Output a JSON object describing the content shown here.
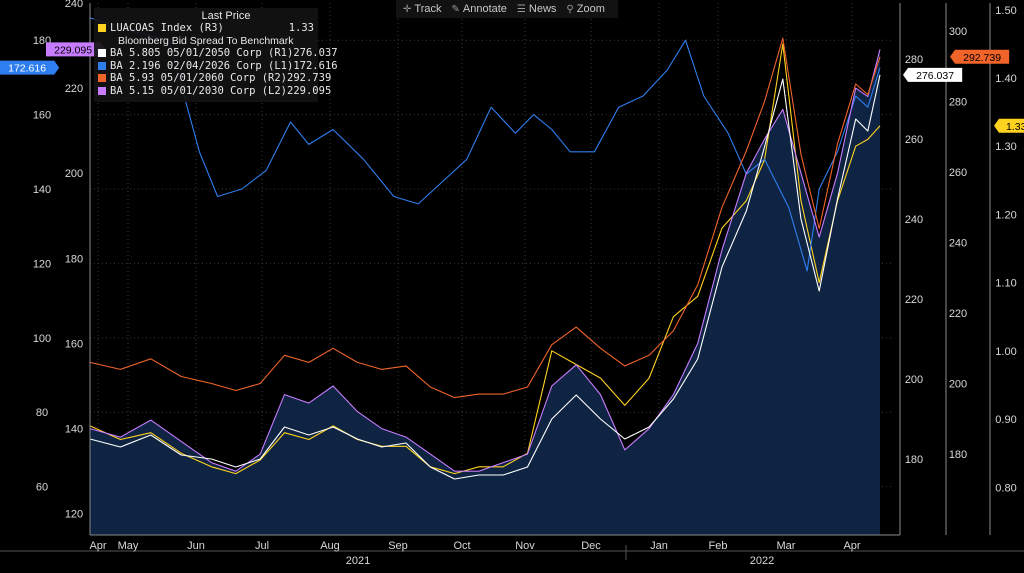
{
  "toolbar": {
    "track": "Track",
    "annotate": "Annotate",
    "news": "News",
    "zoom": "Zoom"
  },
  "legend": {
    "header": "Last Price",
    "entries": [
      {
        "name": "LUACOAS Index  (R3)",
        "value": "1.33",
        "color": "#ffd21f"
      },
      {
        "name": "Bloomberg Bid Spread To Benchmark",
        "value": "",
        "color": ""
      },
      {
        "name": "BA 5.805 05/01/2050 Corp  (R1)",
        "value": "276.037",
        "color": "#ffffff"
      },
      {
        "name": "BA 2.196 02/04/2026 Corp  (L1)",
        "value": "172.616",
        "color": "#2f7ef0"
      },
      {
        "name": "BA 5.93 05/01/2060 Corp  (R2)",
        "value": "292.739",
        "color": "#f0642a"
      },
      {
        "name": "BA 5.15 05/01/2030 Corp  (L2)",
        "value": "229.095",
        "color": "#c77cff"
      }
    ]
  },
  "colors": {
    "luacoas": "#ffd21f",
    "ba2050": "#ffffff",
    "ba2026": "#2f7ef0",
    "ba2060": "#f0642a",
    "ba2030": "#c77cff",
    "area_fill": "#0f2442"
  },
  "chart_data": {
    "type": "line",
    "x_month_labels": [
      "Apr",
      "May",
      "Jun",
      "Jul",
      "Aug",
      "Sep",
      "Oct",
      "Nov",
      "Dec",
      "Jan",
      "Feb",
      "Mar",
      "Apr"
    ],
    "x_year_labels": [
      "2021",
      "2022"
    ],
    "axes": {
      "L1": {
        "ticks": [
          60,
          80,
          100,
          120,
          140,
          160,
          180
        ],
        "range": [
          47,
          190
        ]
      },
      "L2": {
        "ticks": [
          120,
          140,
          160,
          180,
          200,
          220,
          240
        ],
        "range": [
          115,
          240
        ]
      },
      "R1": {
        "ticks": [
          180,
          200,
          220,
          240,
          260,
          280
        ],
        "range": [
          161,
          294
        ]
      },
      "R2": {
        "ticks": [
          180,
          200,
          220,
          240,
          260,
          280,
          300
        ],
        "range": [
          157,
          308
        ]
      },
      "R3": {
        "ticks": [
          0.8,
          0.9,
          1.0,
          1.1,
          1.2,
          1.3,
          1.4,
          1.5
        ],
        "tick_labels": [
          "0.80",
          "0.90",
          "1.00",
          "1.10",
          "1.20",
          "1.30",
          "1.40",
          "1.50"
        ],
        "range": [
          0.73,
          1.51
        ]
      }
    },
    "last_value_tags": [
      {
        "series": "BA 5.15 05/01/2030 Corp",
        "label": "229.095",
        "axis": "L2"
      },
      {
        "series": "BA 2.196 02/04/2026 Corp",
        "label": "172.616",
        "axis": "L1"
      },
      {
        "series": "BA 5.805 05/01/2050 Corp",
        "label": "276.037",
        "axis": "R1"
      },
      {
        "series": "BA 5.93 05/01/2060 Corp",
        "label": "292.739",
        "axis": "R2"
      },
      {
        "series": "LUACOAS Index",
        "label": "1.33",
        "axis": "R3"
      }
    ],
    "series": [
      {
        "name": "BA 2.196 02/04/2026 Corp",
        "axis": "L1",
        "color": "#2f7ef0",
        "x": [
          0,
          0.8,
          1.3,
          1.8,
          2.1,
          2.5,
          2.9,
          3.3,
          3.6,
          4.0,
          4.5,
          5.0,
          5.4,
          5.8,
          6.2,
          6.6,
          7.0,
          7.3,
          7.6,
          7.9,
          8.3,
          8.7,
          9.1,
          9.5,
          9.8,
          10.1,
          10.5,
          10.8,
          11.1,
          11.5,
          11.8,
          12.0,
          12.3,
          12.6,
          12.8,
          13.0
        ],
        "values": [
          186,
          182,
          180,
          150,
          138,
          140,
          145,
          158,
          152,
          156,
          148,
          138,
          136,
          142,
          148,
          162,
          155,
          160,
          156,
          150,
          150,
          162,
          165,
          172,
          180,
          165,
          155,
          144,
          148,
          135,
          118,
          140,
          150,
          165,
          162,
          172.616
        ]
      },
      {
        "name": "BA 5.15 05/01/2030 Corp",
        "axis": "L2",
        "color": "#c77cff",
        "x": [
          0,
          0.5,
          1.0,
          1.5,
          2.0,
          2.4,
          2.8,
          3.2,
          3.6,
          4.0,
          4.4,
          4.8,
          5.2,
          5.6,
          6.0,
          6.4,
          6.8,
          7.2,
          7.6,
          8.0,
          8.4,
          8.8,
          9.2,
          9.6,
          10.0,
          10.4,
          10.8,
          11.1,
          11.4,
          11.7,
          12.0,
          12.3,
          12.6,
          12.8,
          13.0
        ],
        "values": [
          140,
          138,
          142,
          137,
          132,
          130,
          134,
          148,
          146,
          150,
          144,
          140,
          138,
          134,
          130,
          130,
          132,
          134,
          150,
          155,
          148,
          135,
          140,
          148,
          160,
          182,
          200,
          208,
          215,
          200,
          185,
          200,
          220,
          218,
          229.095
        ]
      },
      {
        "name": "BA 5.805 05/01/2050 Corp",
        "axis": "R1",
        "color": "#ffffff",
        "x": [
          0,
          0.5,
          1.0,
          1.5,
          2.0,
          2.4,
          2.8,
          3.2,
          3.6,
          4.0,
          4.4,
          4.8,
          5.2,
          5.6,
          6.0,
          6.4,
          6.8,
          7.2,
          7.6,
          8.0,
          8.4,
          8.8,
          9.2,
          9.6,
          10.0,
          10.4,
          10.8,
          11.1,
          11.4,
          11.7,
          12.0,
          12.3,
          12.6,
          12.8,
          13.0
        ],
        "values": [
          185,
          183,
          186,
          181,
          180,
          178,
          180,
          188,
          186,
          188,
          185,
          183,
          184,
          178,
          175,
          176,
          176,
          178,
          190,
          196,
          190,
          185,
          188,
          195,
          205,
          228,
          242,
          258,
          275,
          240,
          222,
          245,
          265,
          262,
          276.037
        ]
      },
      {
        "name": "BA 5.93 05/01/2060 Corp",
        "axis": "R2",
        "color": "#f0642a",
        "x": [
          0,
          0.5,
          1.0,
          1.5,
          2.0,
          2.4,
          2.8,
          3.2,
          3.6,
          4.0,
          4.4,
          4.8,
          5.2,
          5.6,
          6.0,
          6.4,
          6.8,
          7.2,
          7.6,
          8.0,
          8.4,
          8.8,
          9.2,
          9.6,
          10.0,
          10.4,
          10.8,
          11.1,
          11.4,
          11.7,
          12.0,
          12.3,
          12.6,
          12.8,
          13.0
        ],
        "values": [
          206,
          204,
          207,
          202,
          200,
          198,
          200,
          208,
          206,
          210,
          206,
          204,
          205,
          199,
          196,
          197,
          197,
          199,
          211,
          216,
          210,
          205,
          208,
          215,
          228,
          250,
          266,
          280,
          298,
          265,
          244,
          268,
          285,
          282,
          292.739
        ]
      },
      {
        "name": "LUACOAS Index",
        "axis": "R3",
        "color": "#ffd21f",
        "x": [
          0,
          0.5,
          1.0,
          1.5,
          2.0,
          2.4,
          2.8,
          3.2,
          3.6,
          4.0,
          4.4,
          4.8,
          5.2,
          5.6,
          6.0,
          6.4,
          6.8,
          7.2,
          7.6,
          8.0,
          8.4,
          8.8,
          9.2,
          9.6,
          10.0,
          10.4,
          10.8,
          11.1,
          11.4,
          11.7,
          12.0,
          12.3,
          12.6,
          12.8,
          13.0
        ],
        "values": [
          0.89,
          0.87,
          0.88,
          0.85,
          0.83,
          0.82,
          0.84,
          0.88,
          0.87,
          0.89,
          0.87,
          0.86,
          0.86,
          0.83,
          0.82,
          0.83,
          0.83,
          0.85,
          1.0,
          0.98,
          0.96,
          0.92,
          0.96,
          1.05,
          1.08,
          1.18,
          1.22,
          1.28,
          1.45,
          1.22,
          1.1,
          1.22,
          1.3,
          1.31,
          1.33
        ]
      }
    ]
  }
}
